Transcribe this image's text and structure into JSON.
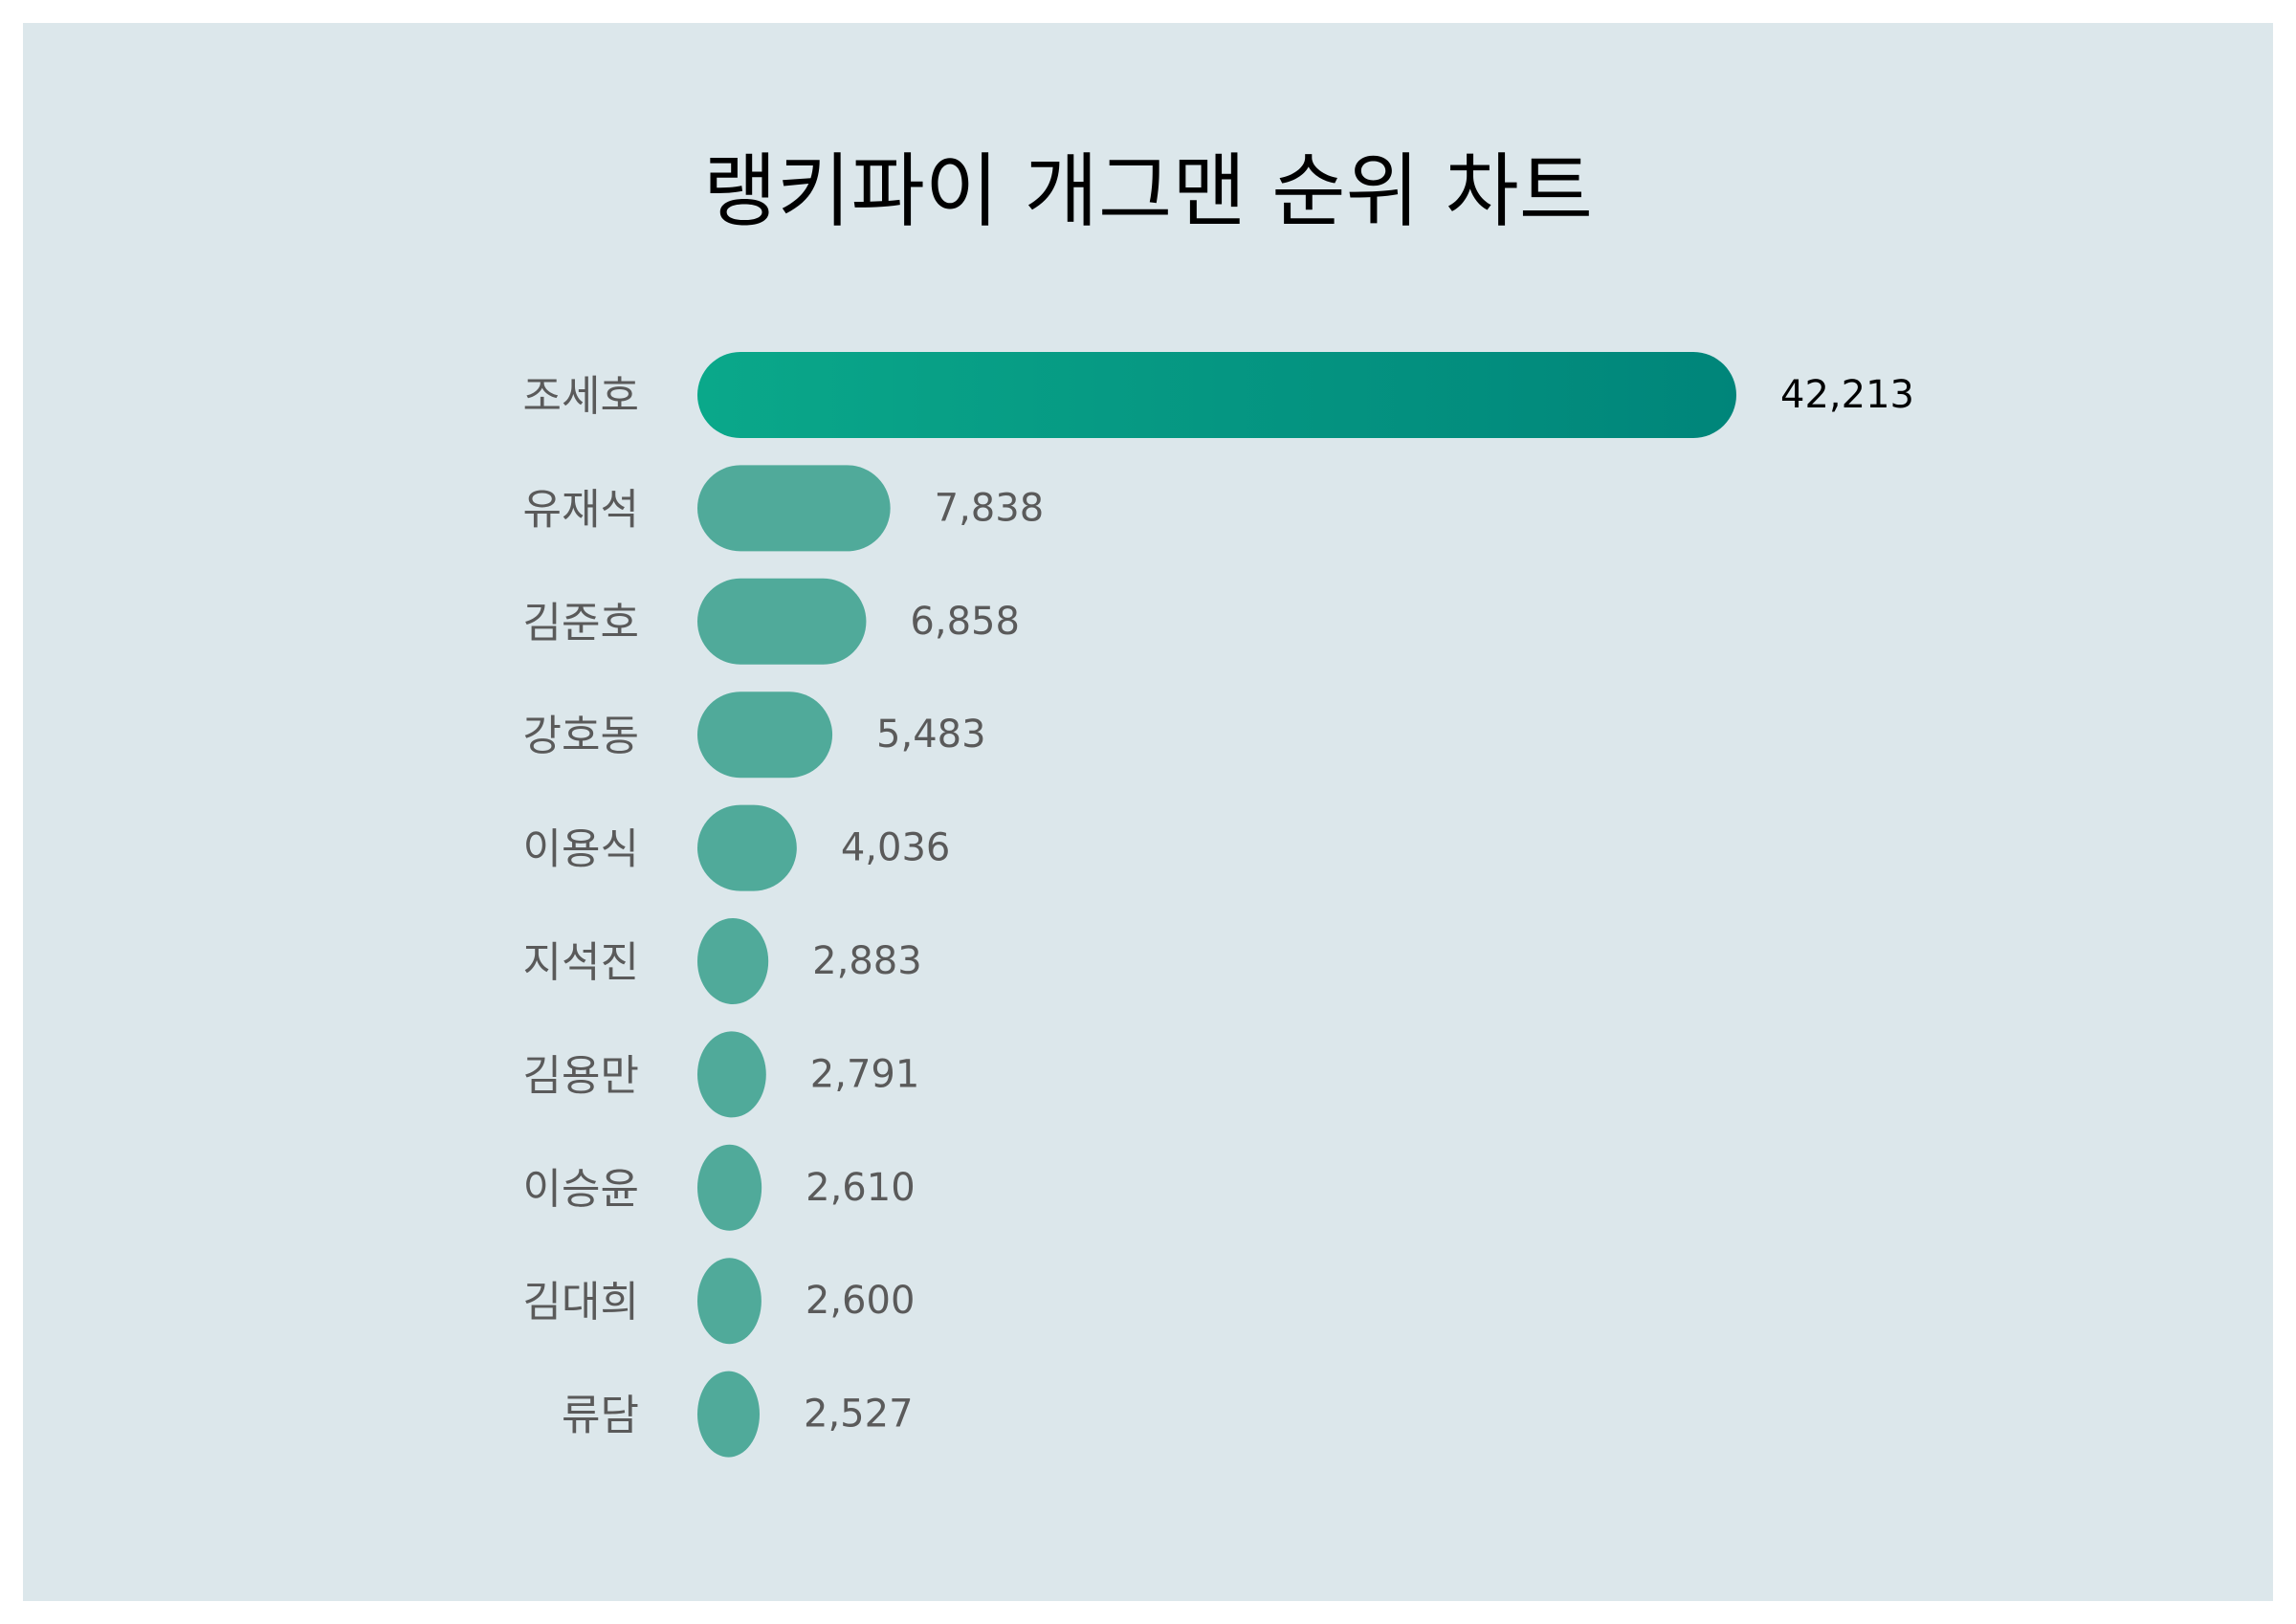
{
  "chart_data": {
    "type": "bar",
    "orientation": "horizontal",
    "title": "랭키파이 개그맨 순위 차트",
    "categories": [
      "조세호",
      "유재석",
      "김준호",
      "강호동",
      "이용식",
      "지석진",
      "김용만",
      "이승윤",
      "김대희",
      "류담"
    ],
    "values": [
      42213,
      7838,
      6858,
      5483,
      4036,
      2883,
      2791,
      2610,
      2600,
      2527
    ],
    "value_labels": [
      "42,213",
      "7,838",
      "6,858",
      "5,483",
      "4,036",
      "2,883",
      "2,791",
      "2,610",
      "2,600",
      "2,527"
    ],
    "xlabel": "",
    "ylabel": "",
    "grid": false,
    "legend": "none",
    "colors": {
      "background": "#dce7eb",
      "top_bar_start": "#0aa88a",
      "top_bar_end": "#00857a",
      "bar": "#50aa9a",
      "label_text": "#5a5a5a",
      "top_value_text": "#000000"
    }
  }
}
